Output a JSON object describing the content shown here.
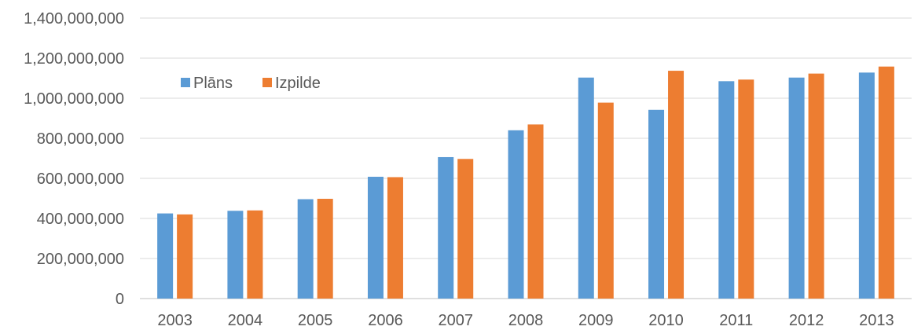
{
  "chart_data": {
    "type": "bar",
    "categories": [
      "2003",
      "2004",
      "2005",
      "2006",
      "2007",
      "2008",
      "2009",
      "2010",
      "2011",
      "2012",
      "2013"
    ],
    "series": [
      {
        "name": "Plāns",
        "color": "#5B9BD5",
        "values": [
          425000000,
          438000000,
          496000000,
          608000000,
          706000000,
          840000000,
          1103000000,
          942000000,
          1085000000,
          1103000000,
          1128000000
        ]
      },
      {
        "name": "Izpilde",
        "color": "#ED7D31",
        "values": [
          420000000,
          440000000,
          498000000,
          606000000,
          697000000,
          869000000,
          978000000,
          1137000000,
          1093000000,
          1123000000,
          1158000000
        ]
      }
    ],
    "yticks": [
      "0",
      "200,000,000",
      "400,000,000",
      "600,000,000",
      "800,000,000",
      "1,000,000,000",
      "1,200,000,000",
      "1,400,000,000"
    ],
    "ylim": [
      0,
      1400000000
    ],
    "grid": true,
    "legend_position": "top-left"
  }
}
